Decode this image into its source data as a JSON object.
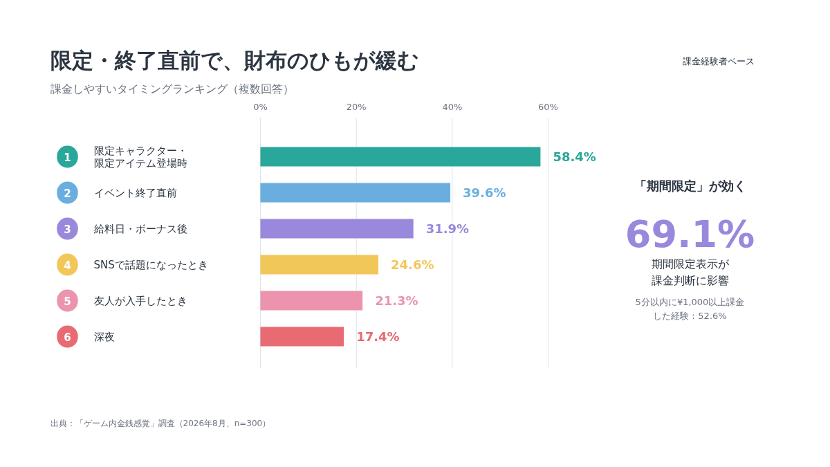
{
  "chart_data": {
    "type": "bar",
    "orientation": "horizontal",
    "title": "限定・終了直前で、財布のひもが緩む",
    "subtitle": "課金しやすいタイミングランキング（複数回答）",
    "categories": [
      "限定キャラクター・限定アイテム登場時",
      "イベント終了直前",
      "給料日・ボーナス後",
      "SNSで話題になったとき",
      "友人が入手したとき",
      "深夜"
    ],
    "values": [
      58.4,
      39.6,
      31.9,
      24.6,
      21.3,
      17.4
    ],
    "colors": [
      "#2aa79b",
      "#6aaee0",
      "#9a88dc",
      "#f2c75a",
      "#ec94ae",
      "#e86a72"
    ],
    "value_labels": [
      "58.4%",
      "39.6%",
      "31.9%",
      "24.6%",
      "21.3%",
      "17.4%"
    ],
    "xlim": [
      0,
      60
    ],
    "xticks": [
      {
        "value": 0,
        "label": "0%"
      },
      {
        "value": 20,
        "label": "20%"
      },
      {
        "value": 40,
        "label": "40%"
      },
      {
        "value": 60,
        "label": "60%"
      }
    ],
    "grid": "x",
    "annotations": [
      "1",
      "2",
      "3",
      "4",
      "5",
      "6",
      "課金経験者ベース",
      "「期間限定」が効く",
      "69.1%",
      "期間限定表示が課金判断に影響",
      "5分以内に¥1,000以上課金した経験：52.6%",
      "出典：「ゲーム内金銭感覚」調査（2026年8月、n=300）"
    ]
  }
}
